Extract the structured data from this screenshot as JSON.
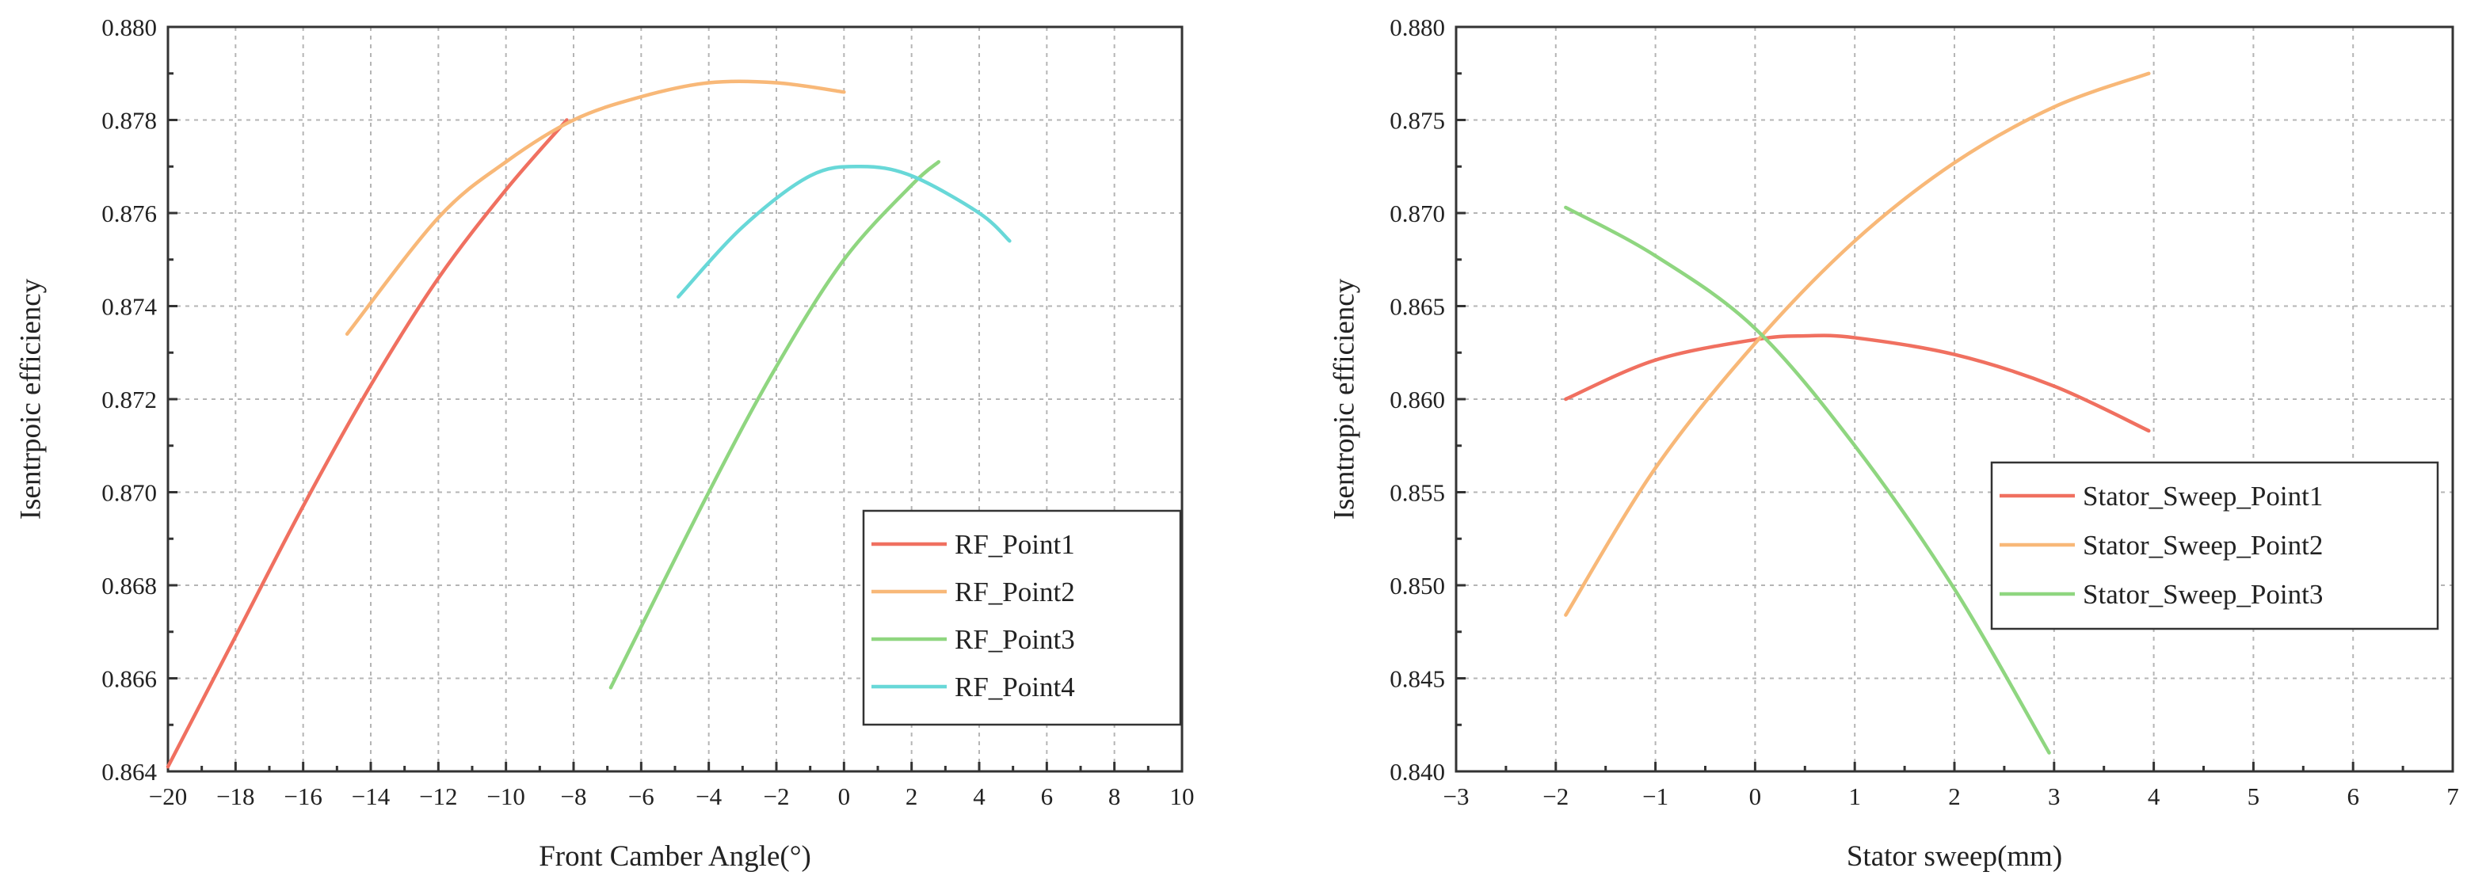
{
  "chart_data": [
    {
      "type": "line",
      "title": "",
      "xlabel": "Front Camber Angle(°)",
      "ylabel": "Isentrpoic efficiency",
      "xlim": [
        -20,
        10
      ],
      "ylim": [
        0.864,
        0.88
      ],
      "xticks": [
        -20,
        -18,
        -16,
        -14,
        -12,
        -10,
        -8,
        -6,
        -4,
        -2,
        0,
        2,
        4,
        6,
        8,
        10
      ],
      "xtick_labels": [
        "−20",
        "−18",
        "−16",
        "−14",
        "−12",
        "−10",
        "−8",
        "−6",
        "−4",
        "−2",
        "0",
        "2",
        "4",
        "6",
        "8",
        "10"
      ],
      "yticks": [
        0.864,
        0.866,
        0.868,
        0.87,
        0.872,
        0.874,
        0.876,
        0.878,
        0.88
      ],
      "ytick_labels": [
        "0.864",
        "0.866",
        "0.868",
        "0.870",
        "0.872",
        "0.874",
        "0.876",
        "0.878",
        "0.880"
      ],
      "grid": true,
      "legend_position": "bottom-right",
      "series": [
        {
          "name": "RF_Point1",
          "color": "#f07060",
          "x": [
            -20,
            -18,
            -16,
            -14,
            -12,
            -10,
            -8.2
          ],
          "y": [
            0.8641,
            0.8669,
            0.8697,
            0.8723,
            0.8746,
            0.8765,
            0.878
          ]
        },
        {
          "name": "RF_Point2",
          "color": "#f8b878",
          "x": [
            -14.7,
            -12,
            -10,
            -8,
            -6,
            -4,
            -2,
            0
          ],
          "y": [
            0.8734,
            0.8759,
            0.8771,
            0.878,
            0.8785,
            0.8788,
            0.8788,
            0.8786
          ]
        },
        {
          "name": "RF_Point3",
          "color": "#8fd680",
          "x": [
            -6.9,
            -4,
            -2,
            0,
            2,
            2.8
          ],
          "y": [
            0.8658,
            0.87,
            0.8727,
            0.875,
            0.8766,
            0.8771
          ]
        },
        {
          "name": "RF_Point4",
          "color": "#68d8d8",
          "x": [
            -4.9,
            -3,
            -1,
            0.5,
            2,
            4,
            4.9
          ],
          "y": [
            0.8742,
            0.8757,
            0.8768,
            0.877,
            0.8768,
            0.876,
            0.8754
          ]
        }
      ]
    },
    {
      "type": "line",
      "title": "",
      "xlabel": "Stator sweep(mm)",
      "ylabel": "Isentropic efficiency",
      "xlim": [
        -3,
        7
      ],
      "ylim": [
        0.84,
        0.88
      ],
      "xticks": [
        -3,
        -2,
        -1,
        0,
        1,
        2,
        3,
        4,
        5,
        6,
        7
      ],
      "xtick_labels": [
        "−3",
        "−2",
        "−1",
        "0",
        "1",
        "2",
        "3",
        "4",
        "5",
        "6",
        "7"
      ],
      "yticks": [
        0.84,
        0.845,
        0.85,
        0.855,
        0.86,
        0.865,
        0.87,
        0.875,
        0.88
      ],
      "ytick_labels": [
        "0.840",
        "0.845",
        "0.850",
        "0.855",
        "0.860",
        "0.865",
        "0.870",
        "0.875",
        "0.880"
      ],
      "grid": true,
      "legend_position": "center-right",
      "series": [
        {
          "name": "Stator_Sweep_Point1",
          "color": "#f07060",
          "x": [
            -1.9,
            -1,
            0,
            0.5,
            1,
            2,
            3,
            3.95
          ],
          "y": [
            0.86,
            0.8621,
            0.8632,
            0.8634,
            0.8633,
            0.8624,
            0.8607,
            0.8583
          ]
        },
        {
          "name": "Stator_Sweep_Point2",
          "color": "#f8b878",
          "x": [
            -1.9,
            -1,
            0,
            1,
            2,
            3,
            3.95
          ],
          "y": [
            0.8484,
            0.8563,
            0.863,
            0.8685,
            0.8727,
            0.8757,
            0.8775
          ]
        },
        {
          "name": "Stator_Sweep_Point3",
          "color": "#8fd680",
          "x": [
            -1.9,
            -1,
            0,
            1,
            2,
            2.95
          ],
          "y": [
            0.8703,
            0.8677,
            0.8638,
            0.8575,
            0.8498,
            0.841
          ]
        }
      ]
    }
  ]
}
